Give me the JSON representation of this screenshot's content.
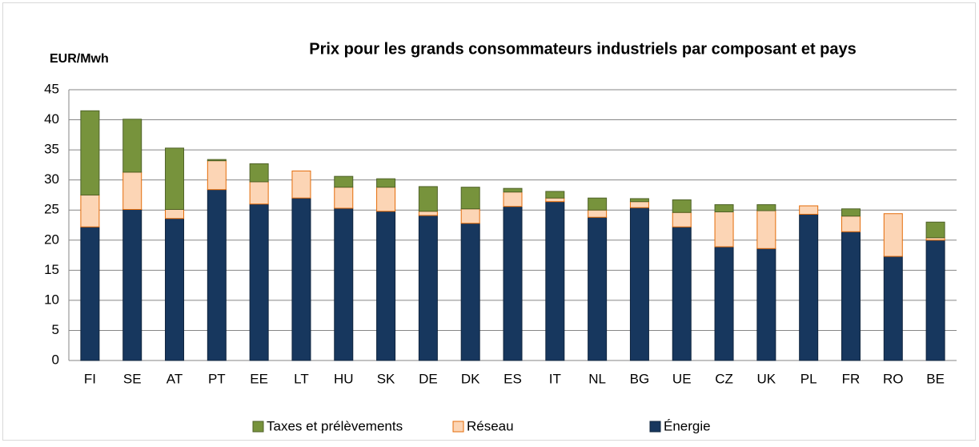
{
  "chart_data": {
    "type": "stacked_bar",
    "title": "Prix pour les grands consommateurs industriels par composant et pays",
    "y_label": "EUR/Mwh",
    "categories": [
      "FI",
      "SE",
      "AT",
      "PT",
      "EE",
      "LT",
      "HU",
      "SK",
      "DE",
      "DK",
      "ES",
      "IT",
      "NL",
      "BG",
      "UE",
      "CZ",
      "UK",
      "PL",
      "FR",
      "RO",
      "BE"
    ],
    "series": [
      {
        "name": "Taxes et prélèvements",
        "color": "#77933c",
        "values": [
          14.0,
          8.8,
          10.2,
          0.2,
          3.0,
          0,
          1.8,
          1.4,
          4.1,
          3.6,
          0.6,
          1.1,
          2.0,
          0.5,
          2.1,
          1.2,
          1.0,
          0,
          1.2,
          0,
          2.6
        ]
      },
      {
        "name": "Réseau",
        "color": "#fcd5b5",
        "values": [
          5.3,
          6.2,
          1.5,
          4.8,
          3.7,
          4.5,
          3.5,
          4.0,
          0.7,
          2.4,
          2.4,
          0.6,
          1.2,
          1.0,
          2.4,
          5.8,
          6.3,
          1.4,
          2.6,
          7.1,
          0.4
        ]
      },
      {
        "name": "Énergie",
        "color": "#17375e",
        "values": [
          22.2,
          25.1,
          23.6,
          28.4,
          26.0,
          27.0,
          25.3,
          24.8,
          24.1,
          22.8,
          25.6,
          26.4,
          23.8,
          25.4,
          22.2,
          18.9,
          18.6,
          24.3,
          21.4,
          17.3,
          20.0
        ]
      }
    ],
    "ylim": [
      0,
      45
    ],
    "yticks": [
      0,
      5,
      10,
      15,
      20,
      25,
      30,
      35,
      40,
      45
    ],
    "grid": true
  }
}
